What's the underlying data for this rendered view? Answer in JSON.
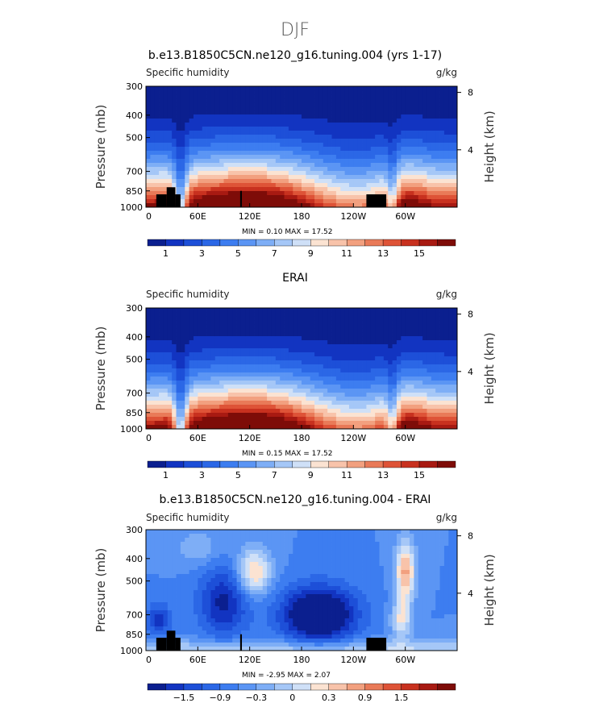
{
  "page": {
    "main_title": "DJF"
  },
  "colors": {
    "level_palette": [
      "#0b1f8f",
      "#1234c1",
      "#1d4fd8",
      "#2b67e6",
      "#3d7df0",
      "#5b95f4",
      "#7eaef6",
      "#a5c7f7",
      "#cfe0f7",
      "#fbe3d2",
      "#f8c3aa",
      "#f2a07f",
      "#e97a58",
      "#de5337",
      "#c8311f",
      "#a81a12",
      "#7e0c08"
    ],
    "diff_palette": [
      "#0b1f8f",
      "#1234c1",
      "#1d4fd8",
      "#2b67e6",
      "#3d7df0",
      "#5b95f4",
      "#7eaef6",
      "#a5c7f7",
      "#cfe0f7",
      "#fbe3d2",
      "#f8c3aa",
      "#f2a07f",
      "#e97a58",
      "#de5337",
      "#c8311f",
      "#a81a12",
      "#7e0c08"
    ],
    "topography": "#000000"
  },
  "chart_data": [
    {
      "type": "heatmap",
      "id": "model",
      "title": "b.e13.B1850C5CN.ne120_g16.tuning.004 (yrs 1-17)",
      "left_label": "Specific humidity",
      "right_label": "g/kg",
      "ylabel": "Pressure (mb)",
      "y2label": "Height (km)",
      "xticks": [
        "0",
        "60E",
        "120E",
        "180",
        "120W",
        "60W"
      ],
      "xtick_lon": [
        0,
        60,
        120,
        180,
        240,
        300
      ],
      "xlim": [
        0,
        360
      ],
      "yticks": [
        "300",
        "400",
        "500",
        "700",
        "850",
        "1000"
      ],
      "ytick_p": [
        300,
        400,
        500,
        700,
        850,
        1000
      ],
      "ylim": [
        300,
        1000
      ],
      "y2ticks": [
        "8",
        "4"
      ],
      "y2tick_km": [
        8,
        4
      ],
      "stats": {
        "min_label": "MIN =",
        "min": "0.10",
        "max_label": "MAX =",
        "max": "17.52"
      },
      "colorbar_labels": [
        "1",
        "3",
        "5",
        "7",
        "9",
        "11",
        "13",
        "15"
      ],
      "field": "humidity",
      "masked": true
    },
    {
      "type": "heatmap",
      "id": "erai",
      "title": "ERAI",
      "left_label": "Specific humidity",
      "right_label": "g/kg",
      "ylabel": "Pressure (mb)",
      "y2label": "Height (km)",
      "xticks": [
        "0",
        "60E",
        "120E",
        "180",
        "120W",
        "60W"
      ],
      "xtick_lon": [
        0,
        60,
        120,
        180,
        240,
        300
      ],
      "xlim": [
        0,
        360
      ],
      "yticks": [
        "300",
        "400",
        "500",
        "700",
        "850",
        "1000"
      ],
      "ytick_p": [
        300,
        400,
        500,
        700,
        850,
        1000
      ],
      "ylim": [
        300,
        1000
      ],
      "y2ticks": [
        "8",
        "4"
      ],
      "y2tick_km": [
        8,
        4
      ],
      "stats": {
        "min_label": "MIN =",
        "min": "0.15",
        "max_label": "MAX =",
        "max": "17.52"
      },
      "colorbar_labels": [
        "1",
        "3",
        "5",
        "7",
        "9",
        "11",
        "13",
        "15"
      ],
      "field": "humidity",
      "masked": false
    },
    {
      "type": "heatmap",
      "id": "diff",
      "title": "b.e13.B1850C5CN.ne120_g16.tuning.004 - ERAI",
      "left_label": "Specific humidity",
      "right_label": "g/kg",
      "ylabel": "Pressure (mb)",
      "y2label": "Height (km)",
      "xticks": [
        "0",
        "60E",
        "120E",
        "180",
        "120W",
        "60W"
      ],
      "xtick_lon": [
        0,
        60,
        120,
        180,
        240,
        300
      ],
      "xlim": [
        0,
        360
      ],
      "yticks": [
        "300",
        "400",
        "500",
        "700",
        "850",
        "1000"
      ],
      "ytick_p": [
        300,
        400,
        500,
        700,
        850,
        1000
      ],
      "ylim": [
        300,
        1000
      ],
      "y2ticks": [
        "8",
        "4"
      ],
      "y2tick_km": [
        8,
        4
      ],
      "stats": {
        "min_label": "MIN =",
        "min": "-2.95",
        "max_label": "MAX =",
        "max": "2.07"
      },
      "colorbar_labels": [
        "−1.5",
        "−0.9",
        "−0.3",
        "0",
        "0.3",
        "0.9",
        "1.5"
      ],
      "field": "difference",
      "masked": true
    }
  ]
}
